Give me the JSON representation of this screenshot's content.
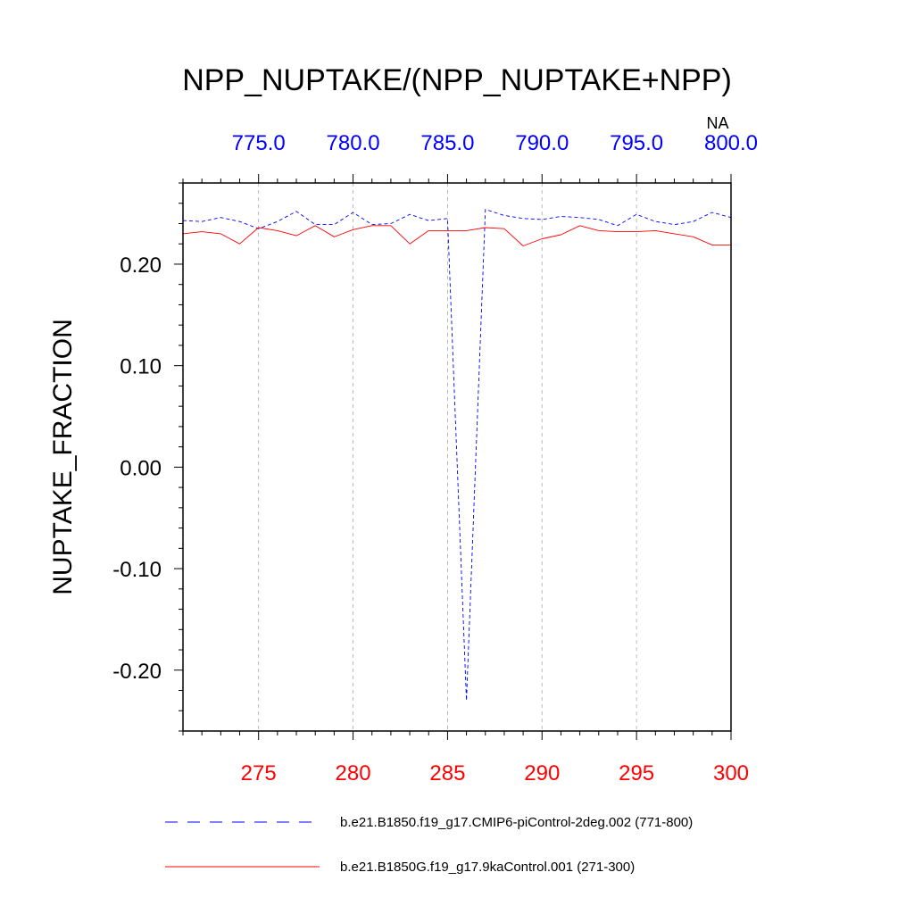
{
  "chart_data": {
    "type": "line",
    "title": "NPP_NUPTAKE/(NPP_NUPTAKE+NPP)",
    "ylabel": "NUPTAKE_FRACTION",
    "xlabel": "",
    "ylim": [
      -0.26,
      0.28
    ],
    "yticks": [
      0.2,
      0.1,
      0.0,
      -0.1,
      -0.2
    ],
    "ytick_labels": [
      "0.20",
      "0.10",
      "0.00",
      "-0.10",
      "-0.20"
    ],
    "bottom_axis": {
      "range": [
        271,
        300
      ],
      "ticks": [
        275,
        280,
        285,
        290,
        295,
        300
      ],
      "tick_labels": [
        "275",
        "280",
        "285",
        "290",
        "295",
        "300"
      ],
      "color": "#ff0000"
    },
    "top_axis": {
      "range": [
        771,
        800
      ],
      "ticks": [
        775,
        780,
        785,
        790,
        795,
        800
      ],
      "tick_labels": [
        "775.0",
        "780.0",
        "785.0",
        "790.0",
        "795.0",
        "800.0"
      ],
      "color": "#0000ff",
      "extra_label": "NA"
    },
    "grid": "vertical dashed at major ticks",
    "legend_position": "bottom",
    "series": [
      {
        "name": "b.e21.B1850.f19_g17.CMIP6-piControl-2deg.002 (771-800)",
        "color": "#0000ff",
        "dash": "dashed",
        "x": [
          771,
          772,
          773,
          774,
          775,
          776,
          777,
          778,
          779,
          780,
          781,
          782,
          783,
          784,
          785,
          786,
          787,
          788,
          789,
          790,
          791,
          792,
          793,
          794,
          795,
          796,
          797,
          798,
          799,
          800
        ],
        "values": [
          0.243,
          0.242,
          0.246,
          0.242,
          0.235,
          0.242,
          0.252,
          0.239,
          0.239,
          0.251,
          0.239,
          0.24,
          0.249,
          0.243,
          0.245,
          -0.23,
          0.254,
          0.248,
          0.245,
          0.244,
          0.247,
          0.246,
          0.244,
          0.238,
          0.249,
          0.242,
          0.239,
          0.242,
          0.251,
          0.246
        ]
      },
      {
        "name": "b.e21.B1850G.f19_g17.9kaControl.001 (271-300)",
        "color": "#ff0000",
        "dash": "solid",
        "x": [
          271,
          272,
          273,
          274,
          275,
          276,
          277,
          278,
          279,
          280,
          281,
          282,
          283,
          284,
          285,
          286,
          287,
          288,
          289,
          290,
          291,
          292,
          293,
          294,
          295,
          296,
          297,
          298,
          299,
          300
        ],
        "values": [
          0.23,
          0.232,
          0.23,
          0.22,
          0.236,
          0.233,
          0.228,
          0.238,
          0.227,
          0.234,
          0.238,
          0.238,
          0.22,
          0.233,
          0.233,
          0.233,
          0.236,
          0.235,
          0.218,
          0.225,
          0.229,
          0.238,
          0.233,
          0.232,
          0.232,
          0.233,
          0.23,
          0.227,
          0.219,
          0.219
        ]
      }
    ]
  }
}
